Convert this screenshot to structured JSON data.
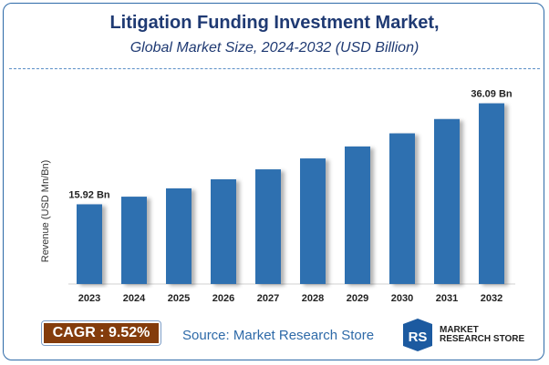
{
  "header": {
    "title": "Litigation Funding Investment Market,",
    "subtitle": "Global Market Size, 2024-2032 (USD Billion)"
  },
  "chart_data": {
    "type": "bar",
    "categories": [
      "2023",
      "2024",
      "2025",
      "2026",
      "2027",
      "2028",
      "2029",
      "2030",
      "2031",
      "2032"
    ],
    "values": [
      15.92,
      17.44,
      19.1,
      20.91,
      22.9,
      25.08,
      27.47,
      30.09,
      32.95,
      36.09
    ],
    "data_labels": {
      "first": "15.92 Bn",
      "last": "36.09 Bn"
    },
    "xlabel": "",
    "ylabel": "Revenue (USD Mn/Bn)",
    "ylim": [
      0,
      40
    ],
    "grid": false,
    "bar_color": "#2e6fb0"
  },
  "footer": {
    "cagr": "CAGR :  9.52%",
    "source": "Source: Market Research Store",
    "logo_line1": "MARKET",
    "logo_line2": "RESEARCH STORE"
  }
}
